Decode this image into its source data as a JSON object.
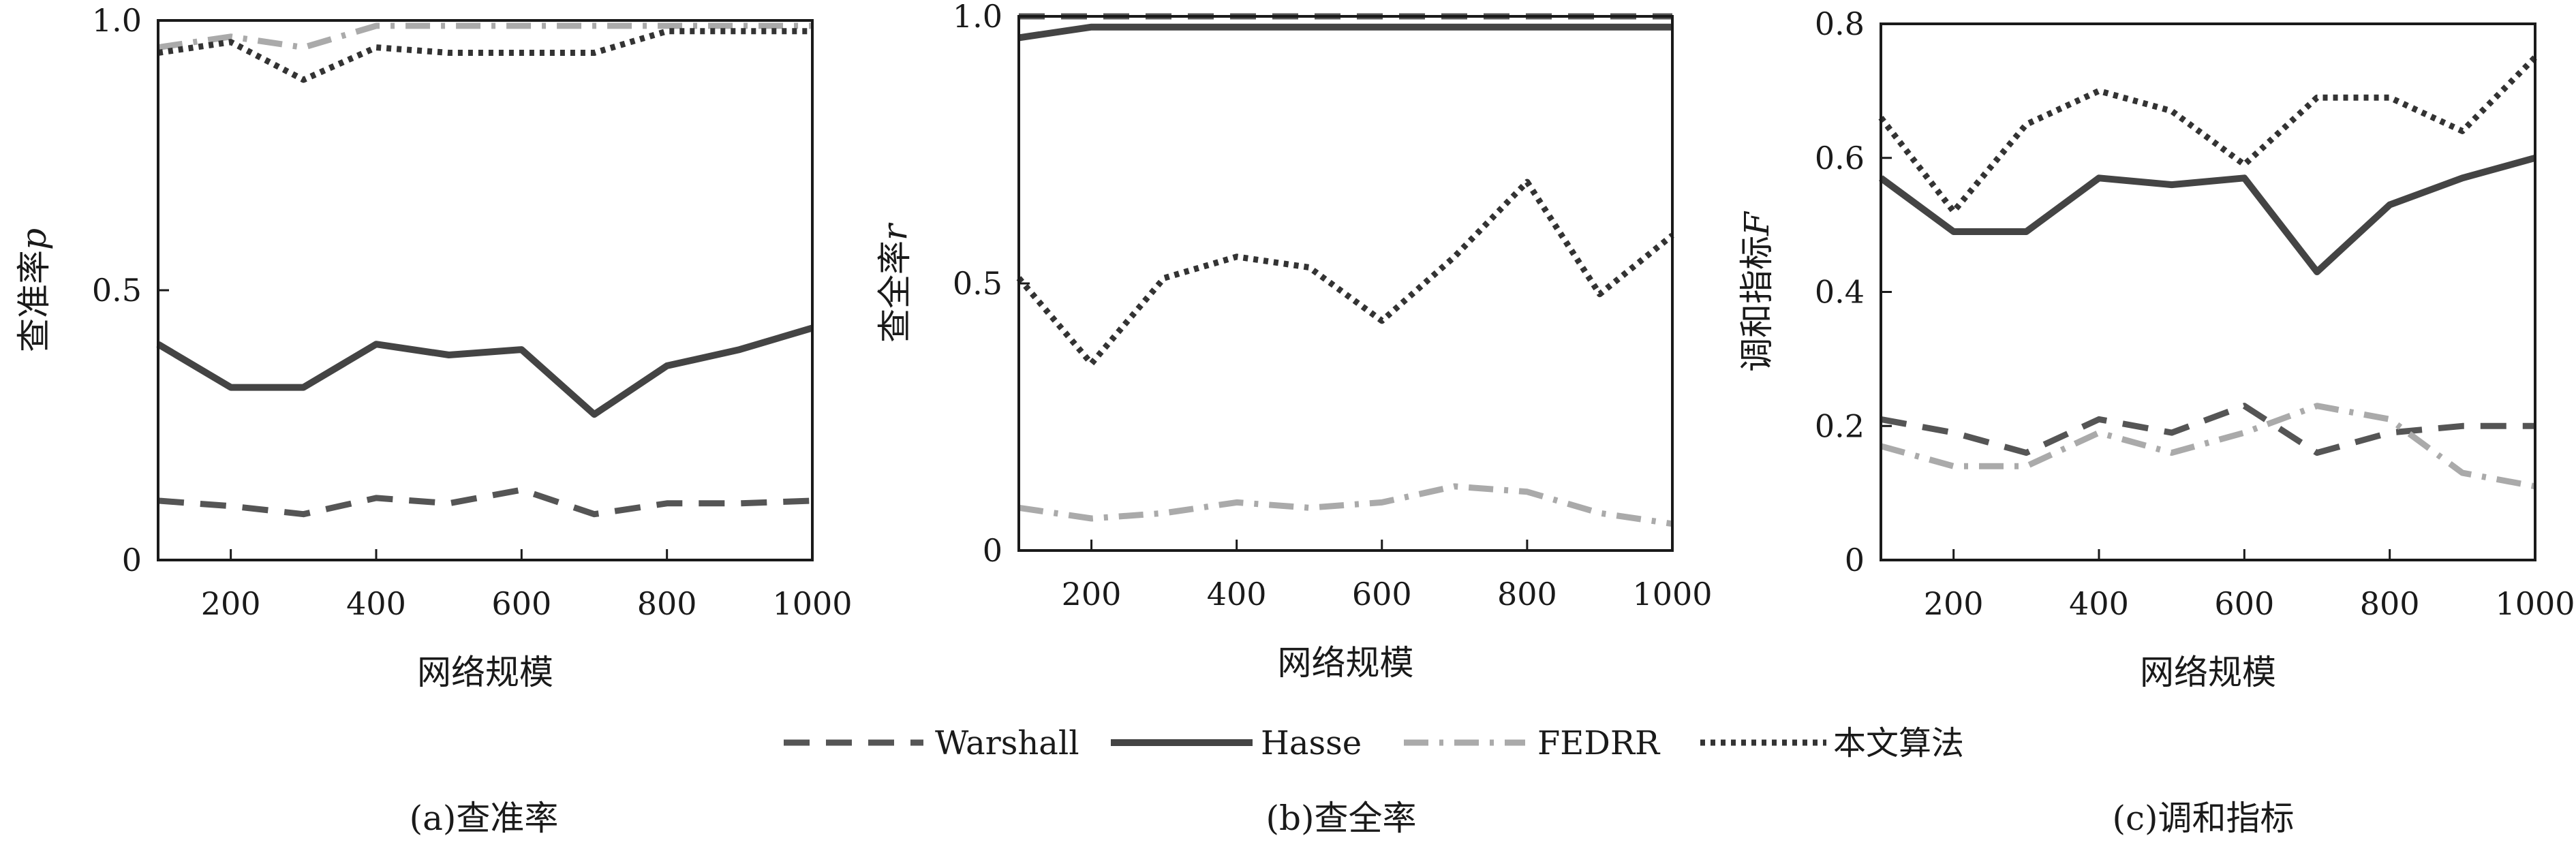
{
  "legend": [
    {
      "label": "Warshall",
      "style": "dashed",
      "color": "#555555"
    },
    {
      "label": "Hasse",
      "style": "solid",
      "color": "#444444"
    },
    {
      "label": "FEDRR",
      "style": "dashdot",
      "color": "#aaaaaa"
    },
    {
      "label": "本文算法",
      "style": "dotted",
      "color": "#333333"
    }
  ],
  "chart_data": [
    {
      "type": "line",
      "caption": "(a)查准率",
      "xlabel": "网络规模",
      "ylabel": "查准率",
      "ylabel_var": "p",
      "xlim": [
        100,
        1000
      ],
      "ylim": [
        0,
        1.0
      ],
      "xticks": [
        200,
        400,
        600,
        800,
        1000
      ],
      "yticks": [
        0,
        0.5,
        1.0
      ],
      "ytick_labels": [
        "0",
        "0.5",
        "1.0"
      ],
      "x": [
        100,
        200,
        300,
        400,
        500,
        600,
        700,
        800,
        900,
        1000
      ],
      "series": [
        {
          "name": "Warshall",
          "values": [
            0.11,
            0.1,
            0.085,
            0.115,
            0.105,
            0.13,
            0.085,
            0.105,
            0.105,
            0.11
          ]
        },
        {
          "name": "Hasse",
          "values": [
            0.4,
            0.32,
            0.32,
            0.4,
            0.38,
            0.39,
            0.27,
            0.36,
            0.39,
            0.43
          ]
        },
        {
          "name": "FEDRR",
          "values": [
            0.95,
            0.97,
            0.95,
            0.99,
            0.99,
            0.99,
            0.99,
            0.99,
            0.99,
            0.99
          ]
        },
        {
          "name": "本文算法",
          "values": [
            0.94,
            0.96,
            0.89,
            0.95,
            0.94,
            0.94,
            0.94,
            0.98,
            0.98,
            0.98
          ]
        }
      ]
    },
    {
      "type": "line",
      "caption": "(b)查全率",
      "xlabel": "网络规模",
      "ylabel": "查全率",
      "ylabel_var": "r",
      "xlim": [
        100,
        1000
      ],
      "ylim": [
        0,
        1.0
      ],
      "xticks": [
        200,
        400,
        600,
        800,
        1000
      ],
      "yticks": [
        0,
        0.5,
        1.0
      ],
      "ytick_labels": [
        "0",
        "0.5",
        "1.0"
      ],
      "x": [
        100,
        200,
        300,
        400,
        500,
        600,
        700,
        800,
        900,
        1000
      ],
      "series": [
        {
          "name": "Warshall",
          "values": [
            1.0,
            1.0,
            1.0,
            1.0,
            1.0,
            1.0,
            1.0,
            1.0,
            1.0,
            1.0
          ]
        },
        {
          "name": "Hasse",
          "values": [
            0.96,
            0.98,
            0.98,
            0.98,
            0.98,
            0.98,
            0.98,
            0.98,
            0.98,
            0.98
          ]
        },
        {
          "name": "FEDRR",
          "values": [
            0.08,
            0.06,
            0.07,
            0.09,
            0.08,
            0.09,
            0.12,
            0.11,
            0.07,
            0.05
          ]
        },
        {
          "name": "本文算法",
          "values": [
            0.51,
            0.35,
            0.51,
            0.55,
            0.53,
            0.43,
            0.55,
            0.69,
            0.48,
            0.59
          ]
        }
      ]
    },
    {
      "type": "line",
      "caption": "(c)调和指标",
      "xlabel": "网络规模",
      "ylabel": "调和指标",
      "ylabel_var": "F",
      "xlim": [
        100,
        1000
      ],
      "ylim": [
        0,
        0.8
      ],
      "xticks": [
        200,
        400,
        600,
        800,
        1000
      ],
      "yticks": [
        0,
        0.2,
        0.4,
        0.6,
        0.8
      ],
      "ytick_labels": [
        "0",
        "0.2",
        "0.4",
        "0.6",
        "0.8"
      ],
      "x": [
        100,
        200,
        300,
        400,
        500,
        600,
        700,
        800,
        900,
        1000
      ],
      "series": [
        {
          "name": "Warshall",
          "values": [
            0.21,
            0.19,
            0.16,
            0.21,
            0.19,
            0.23,
            0.16,
            0.19,
            0.2,
            0.2
          ]
        },
        {
          "name": "Hasse",
          "values": [
            0.57,
            0.49,
            0.49,
            0.57,
            0.56,
            0.57,
            0.43,
            0.53,
            0.57,
            0.6
          ]
        },
        {
          "name": "FEDRR",
          "values": [
            0.17,
            0.14,
            0.14,
            0.19,
            0.16,
            0.19,
            0.23,
            0.21,
            0.13,
            0.11
          ]
        },
        {
          "name": "本文算法",
          "values": [
            0.66,
            0.52,
            0.65,
            0.7,
            0.67,
            0.59,
            0.69,
            0.69,
            0.64,
            0.75
          ]
        }
      ]
    }
  ]
}
